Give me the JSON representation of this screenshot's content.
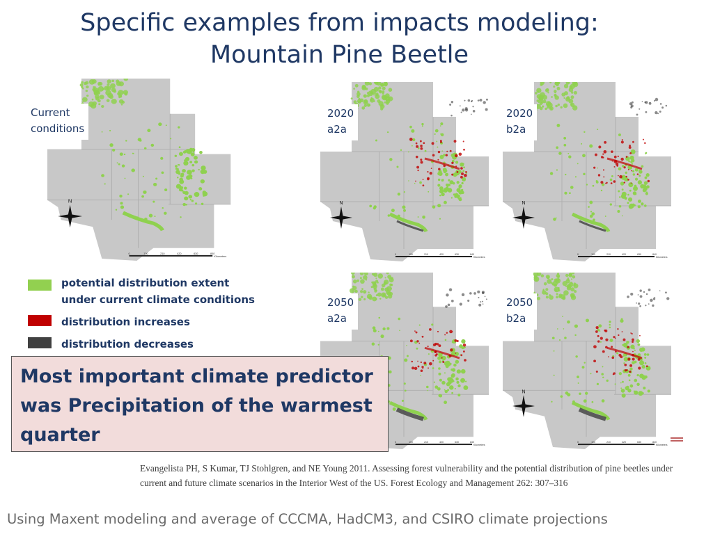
{
  "title": {
    "line1": "Specific examples from impacts modeling:",
    "line2": "Mountain Pine Beetle"
  },
  "maps": [
    {
      "id": "current",
      "label_line1": "Current",
      "label_line2": "conditions",
      "has_increase": false,
      "has_decrease": false
    },
    {
      "id": "2020-a2a",
      "label_line1": "2020",
      "label_line2": "a2a",
      "has_increase": true,
      "has_decrease": true
    },
    {
      "id": "2020-b2a",
      "label_line1": "2020",
      "label_line2": "b2a",
      "has_increase": true,
      "has_decrease": true
    },
    {
      "id": "2050-a2a",
      "label_line1": "2050",
      "label_line2": "a2a",
      "has_increase": true,
      "has_decrease": true
    },
    {
      "id": "2050-b2a",
      "label_line1": "2050",
      "label_line2": "b2a",
      "has_increase": true,
      "has_decrease": true
    }
  ],
  "map_style": {
    "land_color": "#c8c8c8",
    "extent_color": "#8fd14f",
    "increase_color": "#c00000",
    "decrease_color": "#404040",
    "north_label": "N",
    "scale_label": "Kilometers",
    "scale_ticks": [
      "0",
      "100",
      "210",
      "420",
      "630",
      "840"
    ]
  },
  "legend": [
    {
      "color": "#92d050",
      "line1": "potential distribution extent",
      "line2": "under current climate conditions"
    },
    {
      "color": "#c00000",
      "line1": "distribution increases",
      "line2": ""
    },
    {
      "color": "#404040",
      "line1": "distribution decreases",
      "line2": ""
    }
  ],
  "predictor": {
    "line1": "Most important climate predictor",
    "line2": "was Precipitation of the warmest",
    "line3": "quarter"
  },
  "citation": "Evangelista PH, S Kumar, TJ Stohlgren, and NE Young 2011. Assessing forest vulnerability and the potential distribution of pine beetles under current and future climate scenarios in the Interior West of the US. Forest Ecology and Management 262: 307–316",
  "footer": "Using Maxent modeling and average of CCCMA, HadCM3, and CSIRO climate projections"
}
